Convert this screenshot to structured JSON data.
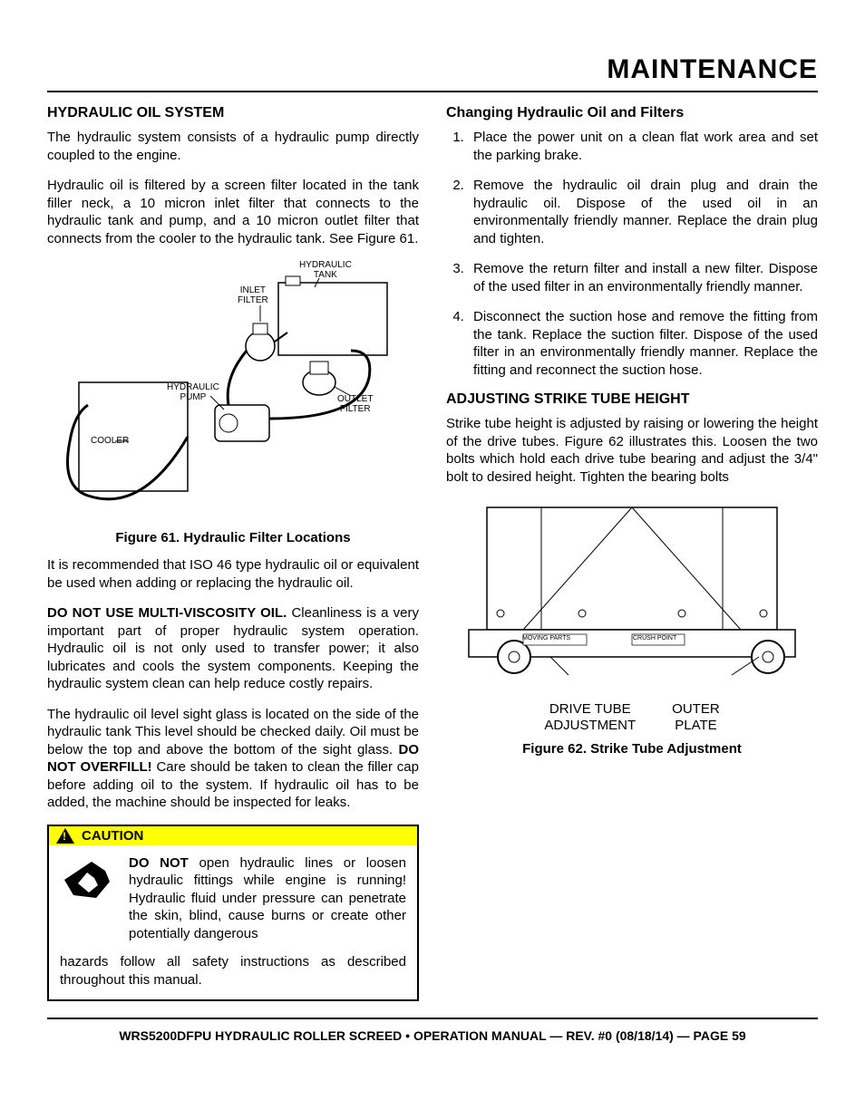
{
  "page_header": "MAINTENANCE",
  "left": {
    "h1": "HYDRAULIC OIL SYSTEM",
    "p1": "The hydraulic system consists of a hydraulic pump directly coupled to the engine.",
    "p2": "Hydraulic oil is filtered by a screen filter located in the tank filler neck, a 10 micron inlet filter that connects to the hydraulic tank and pump, and a 10 micron outlet filter that connects from the cooler to the hydraulic tank. See Figure 61.",
    "fig61": {
      "labels": {
        "hydraulic_tank": "HYDRAULIC\nTANK",
        "inlet_filter": "INLET\nFILTER",
        "hydraulic_pump": "HYDRAULIC\nPUMP",
        "outlet_filter": "OUTLET\nFILTER",
        "cooler": "COOLER"
      },
      "caption": "Figure 61. Hydraulic Filter Locations"
    },
    "p3": "It is recommended that ISO 46 type hydraulic oil or equivalent be used when adding or replacing the hydraulic oil.",
    "p4_bold": "DO NOT USE MULTI-VISCOSITY OIL.",
    "p4_rest": " Cleanliness is a very important part of proper hydraulic system operation. Hydraulic oil is not only used to transfer power; it also lubricates and cools the system components. Keeping the hydraulic system clean can help reduce costly repairs.",
    "p5a": "The hydraulic oil level sight glass is located on the side of the hydraulic tank This level should be checked daily. Oil must be below the top and above the bottom of the sight glass. ",
    "p5_bold": "DO NOT OVERFILL!",
    "p5b": " Care should be taken to clean the filler cap before adding oil to the system. If hydraulic oil has to be added, the machine should be inspected for leaks.",
    "caution": {
      "label": "CAUTION",
      "bold": "DO NOT",
      "text1": " open hydraulic lines or loosen hydraulic fittings while engine is running! Hydraulic fluid under pressure can penetrate the skin, blind, cause burns or create other potentially dangerous ",
      "text2": "hazards follow all safety instructions as described throughout this manual."
    }
  },
  "right": {
    "h1": "Changing Hydraulic Oil and Filters",
    "steps": [
      "Place the power unit on a clean flat work area and set the parking brake.",
      "Remove the hydraulic oil drain plug and drain the hydraulic oil. Dispose of the used oil in an environmentally friendly manner. Replace the drain plug and tighten.",
      "Remove the return filter and install a new filter. Dispose of the used filter in an environmentally friendly manner.",
      "Disconnect the suction hose and remove the fitting from the tank. Replace the suction filter. Dispose of the used filter in an environmentally friendly manner. Replace the fitting and reconnect the suction hose."
    ],
    "h2": "ADJUSTING STRIKE TUBE HEIGHT",
    "p1": "Strike tube height is adjusted by raising or lowering the height of the drive tubes. Figure 62 illustrates this. Loosen the two bolts which hold each drive tube bearing and adjust the 3/4\" bolt to desired height. Tighten the bearing bolts",
    "fig62": {
      "label_drive": "DRIVE TUBE\nADJUSTMENT",
      "label_outer": "OUTER\nPLATE",
      "inner_labels": {
        "moving": "MOVING PARTS",
        "crush": "CRUSH POINT"
      },
      "caption": "Figure 62. Strike Tube Adjustment"
    }
  },
  "footer": "WRS5200DFPU HYDRAULIC ROLLER SCREED • OPERATION MANUAL — REV. #0 (08/18/14) — PAGE 59"
}
